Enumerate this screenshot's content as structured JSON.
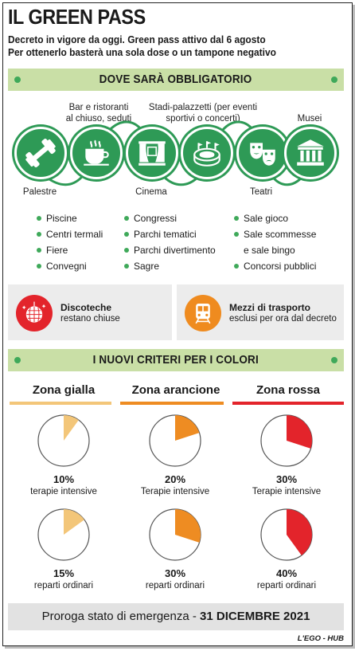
{
  "header": {
    "title": "IL GREEN PASS",
    "subtitle_line1": "Decreto in vigore da oggi. Green pass attivo dal 6 agosto",
    "subtitle_line2": "Per ottenerlo basterà una sola dose o un tampone negativo"
  },
  "section1": {
    "heading": "DOVE SARÀ OBBLIGATORIO",
    "icons": [
      {
        "label": "Palestre",
        "icon": "dumbbell-icon"
      },
      {
        "label_line1": "Bar e ristoranti",
        "label_line2": "al chiuso, seduti",
        "icon": "coffee-cup-icon"
      },
      {
        "label": "Cinema",
        "icon": "cinema-stage-icon"
      },
      {
        "label_line1": "Stadi-palazzetti (per eventi",
        "label_line2": "sportivi o concerti)",
        "icon": "stadium-icon"
      },
      {
        "label": "Teatri",
        "icon": "theatre-masks-icon"
      },
      {
        "label": "Musei",
        "icon": "museum-icon"
      }
    ],
    "list_col1": [
      "Piscine",
      "Centri termali",
      "Fiere",
      "Convegni"
    ],
    "list_col2": [
      "Congressi",
      "Parchi tematici",
      "Parchi divertimento",
      "Sagre"
    ],
    "list_col3": [
      "Sale gioco",
      "Sale scommesse",
      "e sale bingo",
      "Concorsi pubblici"
    ]
  },
  "exceptions": {
    "disco": {
      "title": "Discoteche",
      "text": "restano chiuse",
      "icon": "disco-ball-icon",
      "color": "#e3242b"
    },
    "transport": {
      "title": "Mezzi di trasporto",
      "text": "esclusi per ora dal decreto",
      "icon": "train-icon",
      "color": "#ef8b1f"
    }
  },
  "section2": {
    "heading": "I NUOVI CRITERI PER I COLORI",
    "zones": [
      {
        "name": "Zona gialla",
        "color": "#f3c679",
        "icu_pct": "10%",
        "icu_label": "terapie intensive",
        "ward_pct": "15%",
        "ward_label": "reparti ordinari",
        "icu_value": 10,
        "ward_value": 15
      },
      {
        "name": "Zona arancione",
        "color": "#ee8c22",
        "icu_pct": "20%",
        "icu_label": "Terapie intensive",
        "ward_pct": "30%",
        "ward_label": "reparti ordinari",
        "icu_value": 20,
        "ward_value": 30
      },
      {
        "name": "Zona rossa",
        "color": "#e3242b",
        "icu_pct": "30%",
        "icu_label": "Terapie intensive",
        "ward_pct": "40%",
        "ward_label": "reparti ordinari",
        "icu_value": 30,
        "ward_value": 40
      }
    ]
  },
  "footer": {
    "text": "Proroga stato di emergenza - ",
    "date": "31 DICEMBRE 2021"
  },
  "credit": "L'EGO - HUB",
  "colors": {
    "green": "#2e9a56",
    "band": "#c9dfa6",
    "bullet": "#3fa95a"
  }
}
